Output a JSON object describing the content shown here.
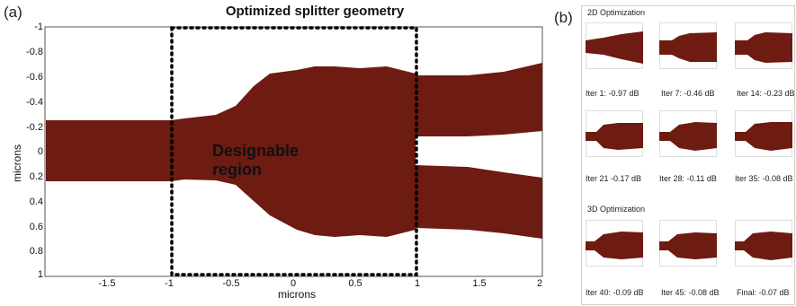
{
  "panel_a": {
    "label": "(a)",
    "title": "Optimized splitter geometry",
    "ylabel": "microns",
    "xlabel": "microns",
    "yticks": [
      "-1",
      "-0.8",
      "-0.6",
      "-0.4",
      "-0.2",
      "0",
      "0.2",
      "0.4",
      "0.6",
      "0.8",
      "1"
    ],
    "xticks": [
      "-1.5",
      "-1",
      "-0.5",
      "0",
      "0.5",
      "1",
      "1.5",
      "2"
    ],
    "region_label": "Designable region",
    "fill_color": "#6e1b12",
    "frame_color": "#000000"
  },
  "panel_b": {
    "label": "(b)",
    "section_2d": "2D Optimization",
    "section_3d": "3D Optimization",
    "iterations": [
      {
        "caption": "Iter 1: -0.97 dB"
      },
      {
        "caption": "Iter 7: -0.46 dB"
      },
      {
        "caption": "Iter 14: -0.23 dB"
      },
      {
        "caption": "Iter 21 -0.17 dB"
      },
      {
        "caption": "Iter 28: -0.11 dB"
      },
      {
        "caption": "Iter 35: -0.08 dB"
      },
      {
        "caption": "Iter 40: -0.09 dB"
      },
      {
        "caption": "Iter 45: -0.08 dB"
      },
      {
        "caption": "Final: -0.07 dB"
      }
    ]
  }
}
